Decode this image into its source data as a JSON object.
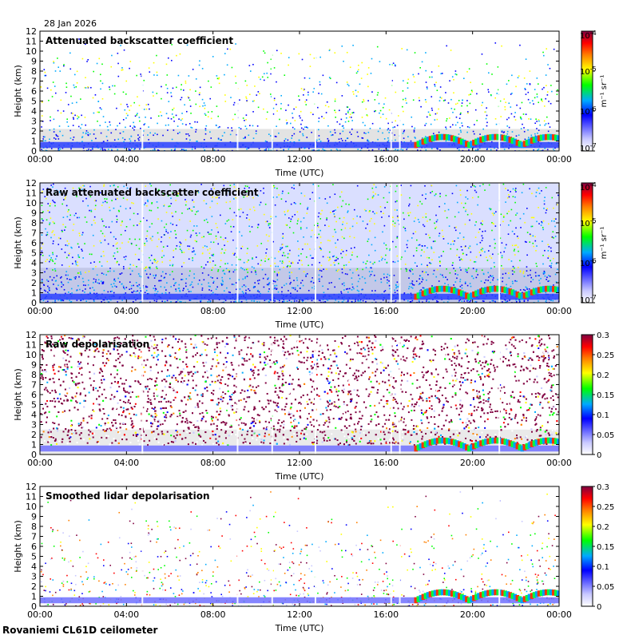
{
  "date_label": "28 Jan 2026",
  "footer": "Rovaniemi CL61D ceilometer",
  "colors": {
    "background_fill": "#dcdcdc",
    "scale": [
      "#ffffff",
      "#c8c8ff",
      "#0000ff",
      "#00aaff",
      "#00ff00",
      "#ffff00",
      "#ff8000",
      "#ff0000",
      "#800040"
    ]
  },
  "chart_data": [
    {
      "type": "heatmap",
      "title": "Attenuated backscatter coefficient",
      "xlabel": "Time (UTC)",
      "ylabel": "Height (km)",
      "xticks": [
        "00:00",
        "04:00",
        "08:00",
        "12:00",
        "16:00",
        "20:00",
        "00:00"
      ],
      "yticks": [
        "0",
        "1",
        "2",
        "3",
        "4",
        "5",
        "6",
        "7",
        "8",
        "9",
        "10",
        "11",
        "12"
      ],
      "ylim": [
        0,
        12
      ],
      "colorbar": {
        "scale": "log",
        "tick_base": "10",
        "tick_exps": [
          "-7",
          "-6",
          "-5",
          "-4"
        ],
        "unit": "m⁻¹ sr⁻¹"
      }
    },
    {
      "type": "heatmap",
      "title": "Raw attenuated backscatter coefficient",
      "xlabel": "Time (UTC)",
      "ylabel": "Height (km)",
      "xticks": [
        "00:00",
        "04:00",
        "08:00",
        "12:00",
        "16:00",
        "20:00",
        "00:00"
      ],
      "yticks": [
        "0",
        "1",
        "2",
        "3",
        "4",
        "5",
        "6",
        "7",
        "8",
        "9",
        "10",
        "11",
        "12"
      ],
      "ylim": [
        0,
        12
      ],
      "colorbar": {
        "scale": "log",
        "tick_base": "10",
        "tick_exps": [
          "-7",
          "-6",
          "-5",
          "-4"
        ],
        "unit": "m⁻¹ sr⁻¹"
      }
    },
    {
      "type": "heatmap",
      "title": "Raw depolarisation",
      "xlabel": "Time (UTC)",
      "ylabel": "Height (km)",
      "xticks": [
        "00:00",
        "04:00",
        "08:00",
        "12:00",
        "16:00",
        "20:00",
        "00:00"
      ],
      "yticks": [
        "0",
        "1",
        "2",
        "3",
        "4",
        "5",
        "6",
        "7",
        "8",
        "9",
        "10",
        "11",
        "12"
      ],
      "ylim": [
        0,
        12
      ],
      "colorbar": {
        "scale": "linear",
        "ticks": [
          "0",
          "0.05",
          "0.1",
          "0.15",
          "0.2",
          "0.25",
          "0.3"
        ],
        "range": [
          0,
          0.3
        ]
      }
    },
    {
      "type": "heatmap",
      "title": "Smoothed lidar depolarisation",
      "xlabel": "Time (UTC)",
      "ylabel": "Height (km)",
      "xticks": [
        "00:00",
        "04:00",
        "08:00",
        "12:00",
        "16:00",
        "20:00",
        "00:00"
      ],
      "yticks": [
        "0",
        "1",
        "2",
        "3",
        "4",
        "5",
        "6",
        "7",
        "8",
        "9",
        "10",
        "11",
        "12"
      ],
      "ylim": [
        0,
        12
      ],
      "colorbar": {
        "scale": "linear",
        "ticks": [
          "0",
          "0.05",
          "0.1",
          "0.15",
          "0.2",
          "0.25",
          "0.3"
        ],
        "range": [
          0,
          0.3
        ]
      }
    }
  ]
}
